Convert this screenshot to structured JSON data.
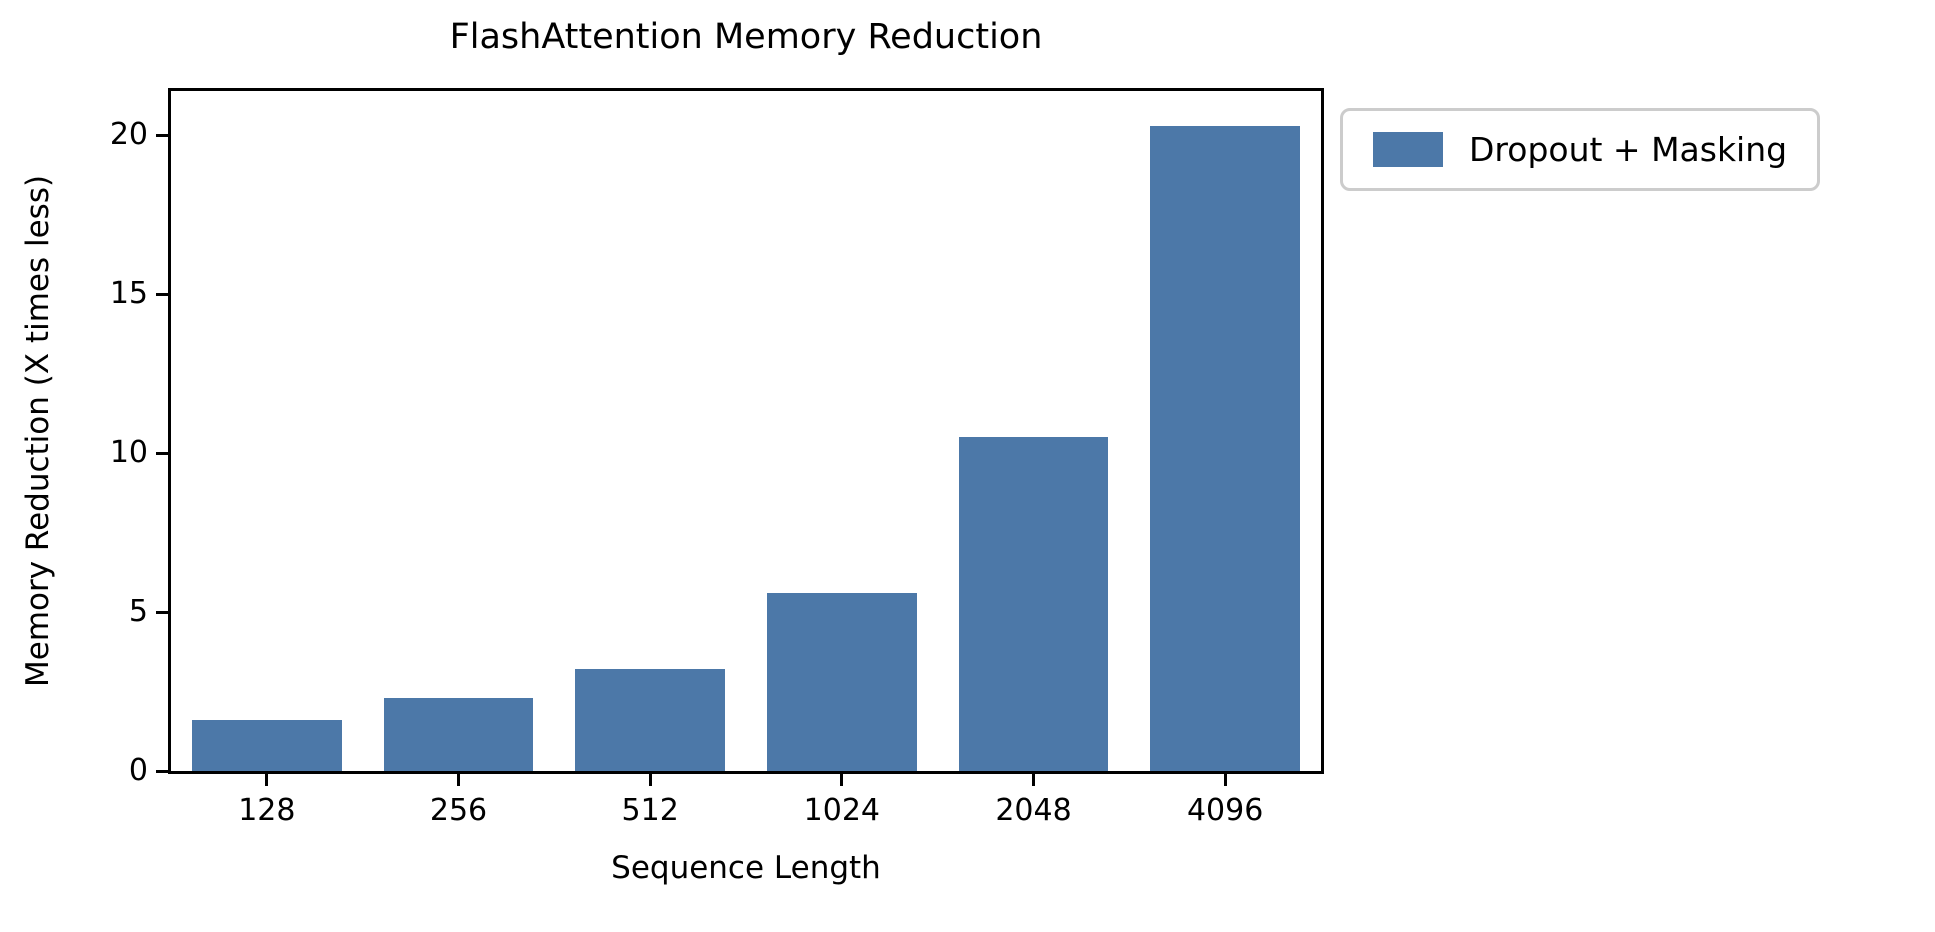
{
  "figure": {
    "background": "#ffffff",
    "text_color": "#000000"
  },
  "chart_data": {
    "type": "bar",
    "title": "FlashAttention Memory Reduction",
    "xlabel": "Sequence Length",
    "ylabel": "Memory Reduction (X times less)",
    "categories": [
      "128",
      "256",
      "512",
      "1024",
      "2048",
      "4096"
    ],
    "series": [
      {
        "name": "Dropout + Masking",
        "values": [
          1.6,
          2.3,
          3.2,
          5.6,
          10.5,
          20.3
        ],
        "color": "#4C78A8"
      }
    ],
    "ylim": [
      0,
      21.4
    ],
    "yticks": [
      0,
      5,
      10,
      15,
      20
    ],
    "grid": false,
    "legend_position": "outside upper right",
    "bar_relative_width": 0.78
  },
  "legend": {
    "label": "Dropout + Masking",
    "swatch_color": "#4C78A8",
    "border_color": "#cccccc"
  }
}
